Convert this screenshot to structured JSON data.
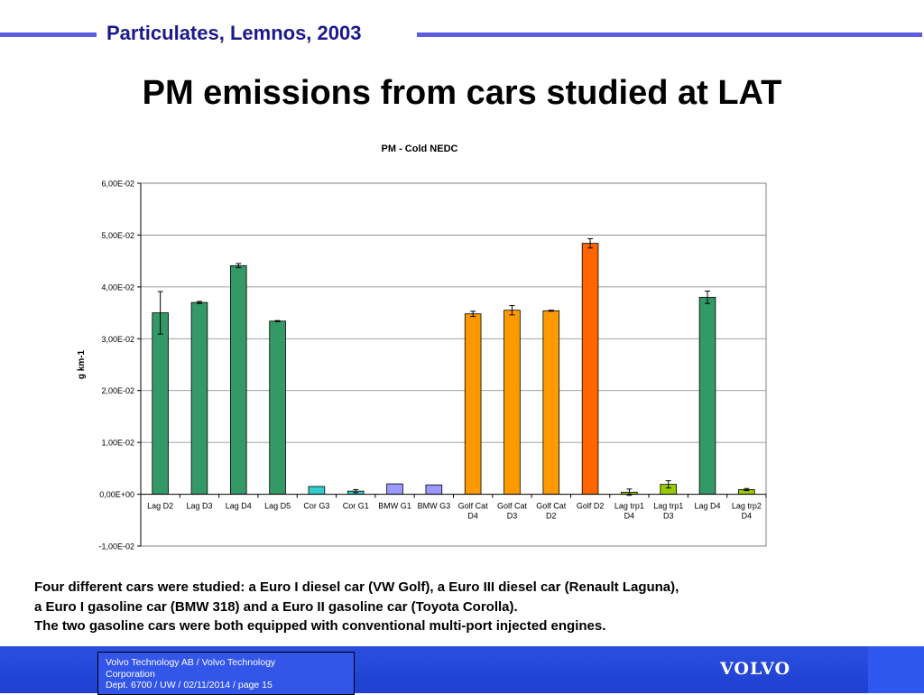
{
  "header": {
    "title": "Particulates, Lemnos, 2003"
  },
  "slide": {
    "title": "PM emissions from cars studied at LAT"
  },
  "colors": {
    "accent_line": "#5b5be0",
    "footer_bg": "#2a4fe0"
  },
  "chart_data": {
    "type": "bar",
    "title": "PM - Cold NEDC",
    "xlabel": "",
    "ylabel": "g km-1",
    "ylim": [
      -0.01,
      0.06
    ],
    "yticks": [
      -0.01,
      0.0,
      0.01,
      0.02,
      0.03,
      0.04,
      0.05,
      0.06
    ],
    "ytick_labels": [
      "-1,00E-02",
      "0,00E+00",
      "1,00E-02",
      "2,00E-02",
      "3,00E-02",
      "4,00E-02",
      "5,00E-02",
      "6,00E-02"
    ],
    "grid": true,
    "legend": "none",
    "categories": [
      [
        "Lag D2"
      ],
      [
        "Lag D3"
      ],
      [
        "Lag D4"
      ],
      [
        "Lag D5"
      ],
      [
        "Cor G3"
      ],
      [
        "Cor G1"
      ],
      [
        "BMW G1"
      ],
      [
        "BMW G3"
      ],
      [
        "Golf Cat",
        "D4"
      ],
      [
        "Golf Cat",
        "D3"
      ],
      [
        "Golf Cat",
        "D2"
      ],
      [
        "Golf D2"
      ],
      [
        "Lag trp1",
        "D4"
      ],
      [
        "Lag trp1",
        "D3"
      ],
      [
        "Lag D4"
      ],
      [
        "Lag trp2",
        "D4"
      ]
    ],
    "values": [
      0.035,
      0.037,
      0.0441,
      0.0334,
      0.0015,
      0.0006,
      0.002,
      0.0018,
      0.0348,
      0.0355,
      0.0354,
      0.0484,
      0.0004,
      0.0019,
      0.038,
      0.0009
    ],
    "errors": [
      0.0041,
      0.0002,
      0.0004,
      0.0001,
      0.0,
      0.0003,
      0.0,
      0.0,
      0.0005,
      0.0009,
      0.0001,
      0.0009,
      0.0006,
      0.0007,
      0.0012,
      0.0002
    ],
    "colors": [
      "#339966",
      "#339966",
      "#339966",
      "#339966",
      "#33cccc",
      "#33cccc",
      "#9999ff",
      "#9999ff",
      "#ff9900",
      "#ff9900",
      "#ff9900",
      "#ff6600",
      "#99cc00",
      "#99cc00",
      "#339966",
      "#99cc00"
    ]
  },
  "body_text": [
    "Four different cars were studied: a Euro I diesel car (VW Golf), a Euro III diesel car (Renault Laguna),",
    "a Euro I gasoline car (BMW 318) and a Euro II gasoline car (Toyota Corolla).",
    "The two gasoline cars were both equipped with conventional multi-port injected engines."
  ],
  "footer": {
    "lines": [
      "Volvo Technology AB / Volvo Technology",
      "Corporation",
      "Dept. 6700 / UW / 02/11/2014 / page 15"
    ],
    "logo": "VOLVO"
  }
}
